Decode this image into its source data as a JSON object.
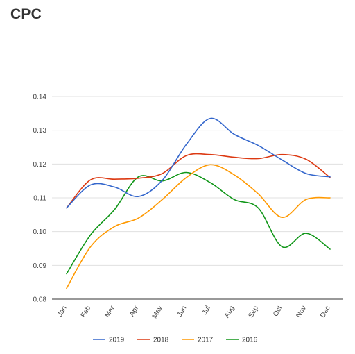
{
  "page": {
    "title": "CPC"
  },
  "chart_data": {
    "type": "line",
    "title": "",
    "xlabel": "",
    "ylabel": "",
    "categories": [
      "Jan",
      "Feb",
      "Mar",
      "Apr",
      "May",
      "Jun",
      "Jul",
      "Aug",
      "Sep",
      "Oct",
      "Nov",
      "Dec"
    ],
    "ylim": [
      0.08,
      0.14
    ],
    "yticks": [
      "0.08",
      "0.09",
      "0.10",
      "0.11",
      "0.12",
      "0.13",
      "0.14"
    ],
    "grid": true,
    "legend_position": "bottom",
    "series": [
      {
        "name": "2019",
        "color": "#3366cc",
        "values": [
          0.107,
          0.1138,
          0.1132,
          0.1104,
          0.1152,
          0.1258,
          0.1335,
          0.1288,
          0.1255,
          0.1212,
          0.1172,
          0.1162
        ]
      },
      {
        "name": "2018",
        "color": "#dc3912",
        "values": [
          0.107,
          0.1153,
          0.1155,
          0.1158,
          0.1172,
          0.1225,
          0.1228,
          0.122,
          0.1216,
          0.1228,
          0.1214,
          0.116
        ]
      },
      {
        "name": "2017",
        "color": "#ff9900",
        "values": [
          0.0832,
          0.0955,
          0.1015,
          0.104,
          0.1095,
          0.116,
          0.1198,
          0.1168,
          0.1112,
          0.1042,
          0.1095,
          0.11
        ]
      },
      {
        "name": "2016",
        "color": "#109618",
        "values": [
          0.0875,
          0.099,
          0.1065,
          0.1162,
          0.115,
          0.1175,
          0.1145,
          0.1095,
          0.107,
          0.0955,
          0.0995,
          0.0948
        ]
      }
    ]
  }
}
